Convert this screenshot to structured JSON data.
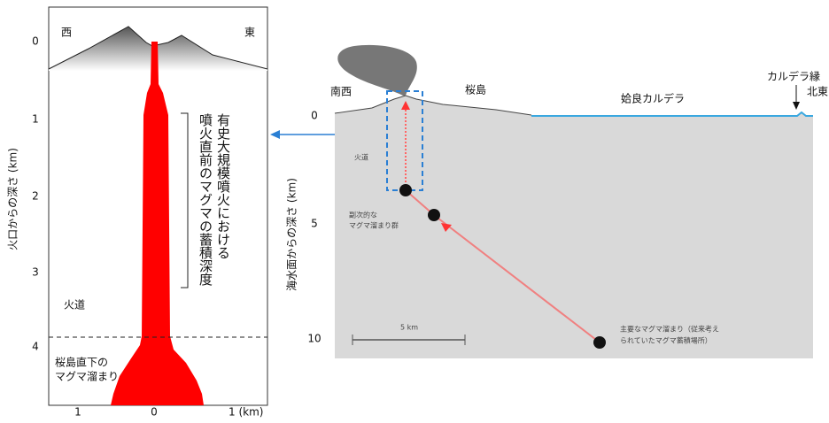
{
  "left_panel": {
    "axis_label": "火口からの深さ (km)",
    "y_ticks": [
      "0",
      "1",
      "2",
      "3",
      "4"
    ],
    "x_ticks": [
      "1",
      "0",
      "1 (km)"
    ],
    "west": "西",
    "east": "東",
    "conduit": "火道",
    "chamber": [
      "桜島直下の",
      "マグマ溜まり"
    ],
    "bracket_label": [
      "有史大規模噴火における",
      "噴火直前のマグマの蓄積深度"
    ]
  },
  "right_panel": {
    "axis_label": "海水面からの深さ (km)",
    "y_ticks": [
      "0",
      "5",
      "10"
    ],
    "southwest": "南西",
    "sakurajima": "桜島",
    "caldera": "姶良カルデラ",
    "caldera_rim": "カルデラ縁",
    "northeast": "北東",
    "conduit": "火道",
    "secondary_chamber": [
      "副次的な",
      "マグマ溜まり群"
    ],
    "main_chamber": [
      "主要なマグマ溜まり（従来考え",
      "られていたマグマ蓄積場所）"
    ],
    "scale": "5 km"
  }
}
